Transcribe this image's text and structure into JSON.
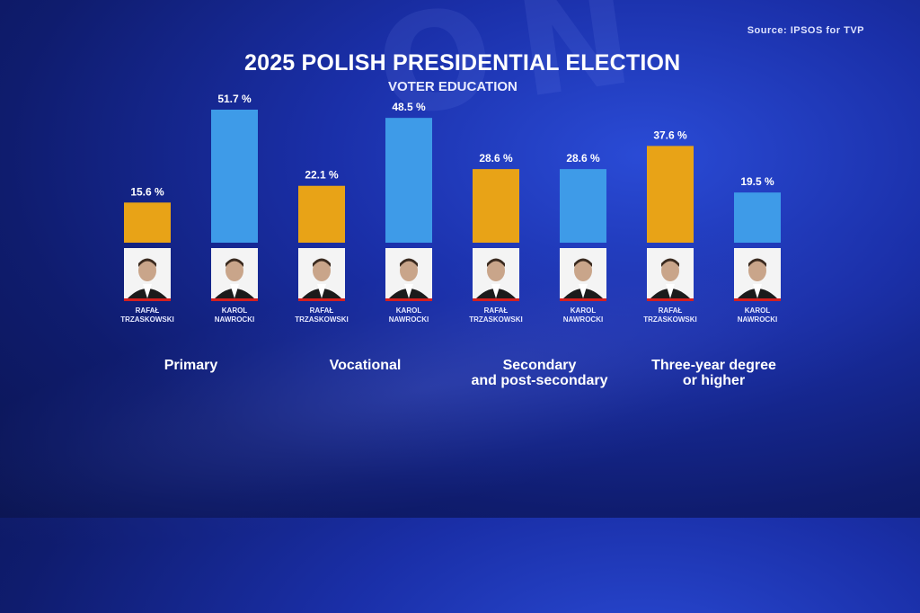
{
  "source": "Source: IPSOS for TVP",
  "title": "2025 POLISH PRESIDENTIAL ELECTION",
  "subtitle": "VOTER EDUCATION",
  "colors": {
    "candidate_a": "#e8a317",
    "candidate_b": "#3e9be8"
  },
  "chart_data": {
    "type": "bar",
    "title": "2025 POLISH PRESIDENTIAL ELECTION",
    "subtitle": "VOTER EDUCATION",
    "categories": [
      "Primary",
      "Vocational",
      "Secondary and post-secondary",
      "Three-year degree or higher"
    ],
    "category_labels": [
      [
        "Primary"
      ],
      [
        "Vocational"
      ],
      [
        "Secondary",
        "and post-secondary"
      ],
      [
        "Three-year degree",
        "or higher"
      ]
    ],
    "series": [
      {
        "values": [
          15.6,
          22.1,
          28.6,
          37.6
        ],
        "labels": [
          "15.6 %",
          "22.1 %",
          "28.6 %",
          "37.6 %"
        ],
        "color": "#e8a317",
        "caption": [
          "RAFAŁ",
          "TRZASKOWSKI"
        ]
      },
      {
        "values": [
          51.7,
          48.5,
          28.6,
          19.5
        ],
        "labels": [
          "51.7 %",
          "48.5 %",
          "28.6 %",
          "19.5 %"
        ],
        "color": "#3e9be8",
        "caption": [
          "KAROL",
          "NAWROCKI"
        ]
      }
    ],
    "ylim": [
      0,
      55
    ],
    "grid": false,
    "legend": "none"
  }
}
